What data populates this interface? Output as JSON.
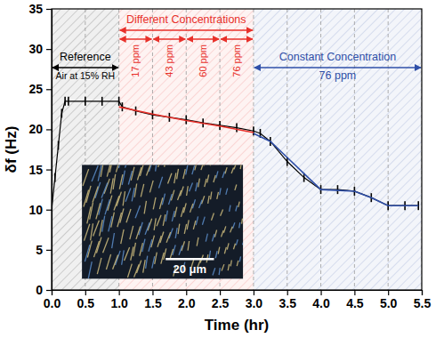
{
  "chart_data": {
    "type": "line",
    "x_label": "Time (hr)",
    "y_label": "δf (Hz)",
    "xlim": [
      0,
      5.5
    ],
    "ylim": [
      0,
      35
    ],
    "xticks": [
      {
        "value": 0,
        "label": "0.0"
      },
      0.5,
      {
        "value": 1,
        "label": "1.0"
      },
      1.5,
      {
        "value": 2,
        "label": "2.0"
      },
      2.5,
      {
        "value": 3,
        "label": "3.0"
      },
      3.5,
      {
        "value": 4,
        "label": "4.0"
      },
      4.5,
      {
        "value": 5,
        "label": "5.0"
      },
      5.5
    ],
    "yticks": [
      0,
      5,
      10,
      15,
      20,
      25,
      30,
      35
    ],
    "grid": "x",
    "series": [
      {
        "color": "#000000",
        "marker": "tick",
        "line_style": "solid",
        "x": [
          0,
          0.05,
          0.1,
          0.15,
          0.2,
          0.25,
          0.5,
          0.75,
          1.0,
          1.05,
          1.25,
          1.5,
          1.75,
          2.0,
          2.25,
          2.5,
          2.75,
          3.0,
          3.1,
          3.25,
          3.5,
          3.75,
          4.0,
          4.25,
          4.5,
          4.75,
          5.0,
          5.25,
          5.45
        ],
        "values": [
          10,
          14,
          18,
          22,
          23.5,
          23.5,
          23.5,
          23.5,
          23.5,
          22.8,
          22.3,
          21.8,
          21.5,
          21.2,
          20.8,
          20.5,
          20.2,
          19.8,
          19.5,
          18.5,
          16,
          14,
          12.5,
          12.5,
          12.3,
          11.5,
          10.5,
          10.5,
          10.5
        ]
      },
      {
        "color": "#e8302a",
        "marker": "none",
        "line_style": "solid",
        "x": [
          1.0,
          1.5,
          2.0,
          2.5,
          3.0
        ],
        "values": [
          22.8,
          21.9,
          21.1,
          20.4,
          19.6
        ]
      },
      {
        "color": "#2f4fa8",
        "marker": "none",
        "line_style": "solid",
        "x": [
          3.0,
          3.25,
          3.5,
          3.75,
          4.0,
          4.5,
          4.75,
          5.0,
          5.45
        ],
        "values": [
          19.5,
          18.5,
          16.5,
          14.5,
          12.5,
          12.3,
          11.5,
          10.5,
          10.5
        ]
      }
    ],
    "regions": [
      {
        "start": 0,
        "end": 1,
        "color": "#000000",
        "labels": [
          "Reference",
          "Air at 15% RH"
        ]
      },
      {
        "start": 1,
        "end": 3,
        "color": "#e8302a",
        "labels": [
          "Different Concentrations"
        ],
        "intervals": [
          {
            "start": 1,
            "end": 1.5,
            "label": "17 ppm"
          },
          {
            "start": 1.5,
            "end": 2,
            "label": "43 ppm"
          },
          {
            "start": 2,
            "end": 2.5,
            "label": "60 ppm"
          },
          {
            "start": 2.5,
            "end": 3,
            "label": "76 ppm"
          }
        ]
      },
      {
        "start": 3,
        "end": 5.5,
        "color": "#2f4fa8",
        "labels": [
          "Constant Concentration",
          "76 ppm"
        ]
      }
    ],
    "inset": {
      "scale_bar": "20 μm"
    }
  }
}
